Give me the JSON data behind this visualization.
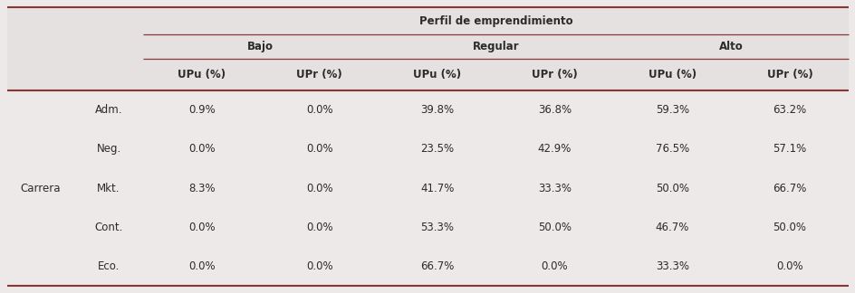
{
  "title": "Perfil de emprendimiento",
  "level1_headers": [
    "Bajo",
    "Regular",
    "Alto"
  ],
  "level2_headers": [
    "UPu (%)",
    "UPr (%)",
    "UPu (%)",
    "UPr (%)",
    "UPu (%)",
    "UPr (%)"
  ],
  "row_label_col1": "Carrera",
  "row_labels": [
    "Adm.",
    "Neg.",
    "Mkt.",
    "Cont.",
    "Eco."
  ],
  "data": [
    [
      "0.9%",
      "0.0%",
      "39.8%",
      "36.8%",
      "59.3%",
      "63.2%"
    ],
    [
      "0.0%",
      "0.0%",
      "23.5%",
      "42.9%",
      "76.5%",
      "57.1%"
    ],
    [
      "8.3%",
      "0.0%",
      "41.7%",
      "33.3%",
      "50.0%",
      "66.7%"
    ],
    [
      "0.0%",
      "0.0%",
      "53.3%",
      "50.0%",
      "46.7%",
      "50.0%"
    ],
    [
      "0.0%",
      "0.0%",
      "66.7%",
      "0.0%",
      "33.3%",
      "0.0%"
    ]
  ],
  "bg_color": "#ede9e9",
  "header_bg": "#e5e1e1",
  "line_color": "#8b3535",
  "text_color": "#2b2b2b",
  "font_size": 8.5
}
